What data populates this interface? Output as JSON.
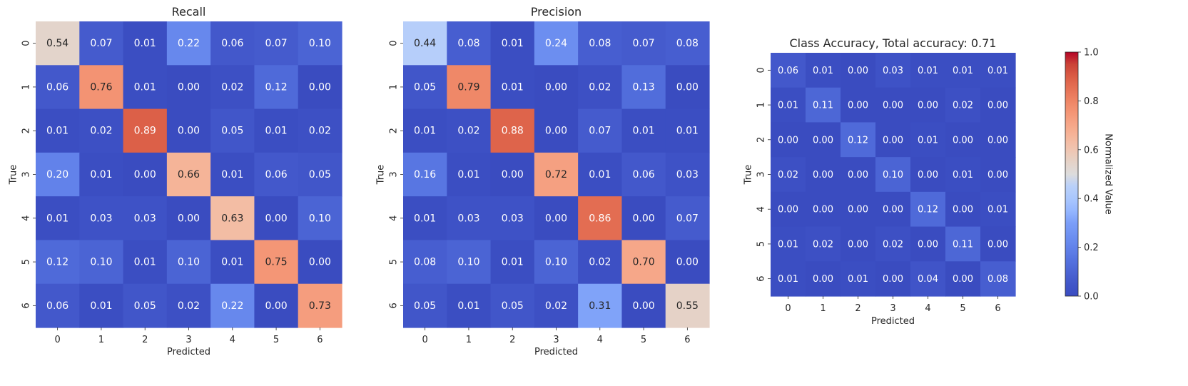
{
  "chart_data": [
    {
      "type": "heatmap",
      "title": "Recall",
      "xlabel": "Predicted",
      "ylabel": "True",
      "x_categories": [
        "0",
        "1",
        "2",
        "3",
        "4",
        "5",
        "6"
      ],
      "y_categories": [
        "0",
        "1",
        "2",
        "3",
        "4",
        "5",
        "6"
      ],
      "values": [
        [
          0.54,
          0.07,
          0.01,
          0.22,
          0.06,
          0.07,
          0.1
        ],
        [
          0.06,
          0.76,
          0.01,
          0.0,
          0.02,
          0.12,
          0.0
        ],
        [
          0.01,
          0.02,
          0.89,
          0.0,
          0.05,
          0.01,
          0.02
        ],
        [
          0.2,
          0.01,
          0.0,
          0.66,
          0.01,
          0.06,
          0.05
        ],
        [
          0.01,
          0.03,
          0.03,
          0.0,
          0.63,
          0.0,
          0.1
        ],
        [
          0.12,
          0.1,
          0.01,
          0.1,
          0.01,
          0.75,
          0.0
        ],
        [
          0.06,
          0.01,
          0.05,
          0.02,
          0.22,
          0.0,
          0.73
        ]
      ],
      "vmin": 0,
      "vmax": 1,
      "colormap": "coolwarm"
    },
    {
      "type": "heatmap",
      "title": "Precision",
      "xlabel": "Predicted",
      "ylabel": "True",
      "x_categories": [
        "0",
        "1",
        "2",
        "3",
        "4",
        "5",
        "6"
      ],
      "y_categories": [
        "0",
        "1",
        "2",
        "3",
        "4",
        "5",
        "6"
      ],
      "values": [
        [
          0.44,
          0.08,
          0.01,
          0.24,
          0.08,
          0.07,
          0.08
        ],
        [
          0.05,
          0.79,
          0.01,
          0.0,
          0.02,
          0.13,
          0.0
        ],
        [
          0.01,
          0.02,
          0.88,
          0.0,
          0.07,
          0.01,
          0.01
        ],
        [
          0.16,
          0.01,
          0.0,
          0.72,
          0.01,
          0.06,
          0.03
        ],
        [
          0.01,
          0.03,
          0.03,
          0.0,
          0.86,
          0.0,
          0.07
        ],
        [
          0.08,
          0.1,
          0.01,
          0.1,
          0.02,
          0.7,
          0.0
        ],
        [
          0.05,
          0.01,
          0.05,
          0.02,
          0.31,
          0.0,
          0.55
        ]
      ],
      "vmin": 0,
      "vmax": 1,
      "colormap": "coolwarm"
    },
    {
      "type": "heatmap",
      "title": "Class Accuracy, Total accuracy: 0.71",
      "xlabel": "Predicted",
      "ylabel": "True",
      "x_categories": [
        "0",
        "1",
        "2",
        "3",
        "4",
        "5",
        "6"
      ],
      "y_categories": [
        "0",
        "1",
        "2",
        "3",
        "4",
        "5",
        "6"
      ],
      "values": [
        [
          0.06,
          0.01,
          0.0,
          0.03,
          0.01,
          0.01,
          0.01
        ],
        [
          0.01,
          0.11,
          0.0,
          0.0,
          0.0,
          0.02,
          0.0
        ],
        [
          0.0,
          0.0,
          0.12,
          0.0,
          0.01,
          0.0,
          0.0
        ],
        [
          0.02,
          0.0,
          0.0,
          0.1,
          0.0,
          0.01,
          0.0
        ],
        [
          0.0,
          0.0,
          0.0,
          0.0,
          0.12,
          0.0,
          0.01
        ],
        [
          0.01,
          0.02,
          0.0,
          0.02,
          0.0,
          0.11,
          0.0
        ],
        [
          0.01,
          0.0,
          0.01,
          0.0,
          0.04,
          0.0,
          0.08
        ]
      ],
      "vmin": 0,
      "vmax": 1,
      "colormap": "coolwarm"
    }
  ],
  "colorbar": {
    "label": "Normalized Value",
    "ticks": [
      "0.0",
      "0.2",
      "0.4",
      "0.6",
      "0.8",
      "1.0"
    ],
    "range": [
      0,
      1
    ],
    "colormap": "coolwarm"
  }
}
